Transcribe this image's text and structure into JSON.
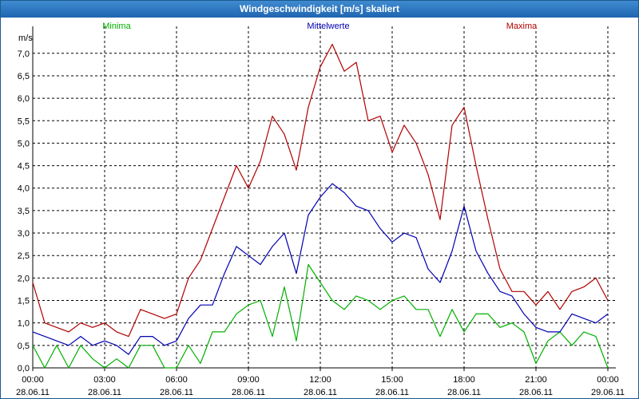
{
  "window": {
    "title": "Windgeschwindigkeit [m/s] skaliert"
  },
  "chart_data": {
    "type": "line",
    "title": "Windgeschwindigkeit [m/s] skaliert",
    "ylabel": "m/s",
    "ylim": [
      0,
      7.6
    ],
    "yticks": [
      "0,0",
      "0,5",
      "1,0",
      "1,5",
      "2,0",
      "2,5",
      "3,0",
      "3,5",
      "4,0",
      "4,5",
      "5,0",
      "5,5",
      "6,0",
      "6,5",
      "7,0"
    ],
    "xlim": [
      0,
      24
    ],
    "xticks": [
      {
        "time": "00:00",
        "date": "28.06.11"
      },
      {
        "time": "03:00",
        "date": "28.06.11"
      },
      {
        "time": "06:00",
        "date": "28.06.11"
      },
      {
        "time": "09:00",
        "date": "28.06.11"
      },
      {
        "time": "12:00",
        "date": "28.06.11"
      },
      {
        "time": "15:00",
        "date": "28.06.11"
      },
      {
        "time": "18:00",
        "date": "28.06.11"
      },
      {
        "time": "21:00",
        "date": "28.06.11"
      },
      {
        "time": "00:00",
        "date": "29.06.11"
      }
    ],
    "grid": true,
    "legend_position": "top",
    "series": [
      {
        "name": "Minima",
        "color": "#00b000",
        "x": [
          0,
          0.5,
          1,
          1.5,
          2,
          2.5,
          3,
          3.5,
          4,
          4.5,
          5,
          5.5,
          6,
          6.5,
          7,
          7.5,
          8,
          8.5,
          9,
          9.5,
          10,
          10.5,
          11,
          11.5,
          12,
          12.5,
          13,
          13.5,
          14,
          14.5,
          15,
          15.5,
          16,
          16.5,
          17,
          17.5,
          18,
          18.5,
          19,
          19.5,
          20,
          20.5,
          21,
          21.5,
          22,
          22.5,
          23,
          23.5,
          24
        ],
        "y": [
          0.5,
          0,
          0.5,
          0,
          0.5,
          0.2,
          0,
          0.2,
          0,
          0.5,
          0.5,
          0,
          0,
          0.5,
          0.1,
          0.8,
          0.8,
          1.2,
          1.4,
          1.5,
          0.7,
          1.8,
          0.6,
          2.3,
          1.9,
          1.5,
          1.3,
          1.6,
          1.5,
          1.3,
          1.5,
          1.6,
          1.3,
          1.3,
          0.7,
          1.3,
          0.8,
          1.2,
          1.2,
          0.9,
          1.0,
          0.8,
          0.1,
          0.6,
          0.8,
          0.5,
          0.8,
          0.7,
          0
        ]
      },
      {
        "name": "Mittelwerte",
        "color": "#0000b0",
        "x": [
          0,
          0.5,
          1,
          1.5,
          2,
          2.5,
          3,
          3.5,
          4,
          4.5,
          5,
          5.5,
          6,
          6.5,
          7,
          7.5,
          8,
          8.5,
          9,
          9.5,
          10,
          10.5,
          11,
          11.5,
          12,
          12.5,
          13,
          13.5,
          14,
          14.5,
          15,
          15.5,
          16,
          16.5,
          17,
          17.5,
          18,
          18.5,
          19,
          19.5,
          20,
          20.5,
          21,
          21.5,
          22,
          22.5,
          23,
          23.5,
          24
        ],
        "y": [
          0.8,
          0.7,
          0.6,
          0.5,
          0.7,
          0.5,
          0.6,
          0.5,
          0.3,
          0.7,
          0.7,
          0.5,
          0.6,
          1.1,
          1.4,
          1.4,
          2.1,
          2.7,
          2.5,
          2.3,
          2.7,
          3.0,
          2.1,
          3.4,
          3.8,
          4.1,
          3.9,
          3.6,
          3.5,
          3.1,
          2.8,
          3.0,
          2.9,
          2.2,
          1.9,
          2.6,
          3.6,
          2.6,
          2.1,
          1.7,
          1.6,
          1.2,
          0.9,
          0.8,
          0.8,
          1.2,
          1.1,
          1.0,
          1.2
        ]
      },
      {
        "name": "Maxima",
        "color": "#b00000",
        "x": [
          0,
          0.5,
          1,
          1.5,
          2,
          2.5,
          3,
          3.5,
          4,
          4.5,
          5,
          5.5,
          6,
          6.5,
          7,
          7.5,
          8,
          8.5,
          9,
          9.5,
          10,
          10.5,
          11,
          11.5,
          12,
          12.5,
          13,
          13.5,
          14,
          14.5,
          15,
          15.5,
          16,
          16.5,
          17,
          17.5,
          18,
          18.5,
          19,
          19.5,
          20,
          20.5,
          21,
          21.5,
          22,
          22.5,
          23,
          23.5,
          24
        ],
        "y": [
          1.9,
          1.0,
          0.9,
          0.8,
          1.0,
          0.9,
          1.0,
          0.8,
          0.7,
          1.3,
          1.2,
          1.1,
          1.2,
          2.0,
          2.4,
          3.1,
          3.8,
          4.5,
          4.0,
          4.6,
          5.6,
          5.2,
          4.4,
          5.8,
          6.7,
          7.2,
          6.6,
          6.8,
          5.5,
          5.6,
          4.8,
          5.4,
          5.0,
          4.3,
          3.3,
          5.4,
          5.8,
          4.5,
          3.3,
          2.2,
          1.7,
          1.7,
          1.4,
          1.7,
          1.3,
          1.7,
          1.8,
          2.0,
          1.5
        ]
      }
    ]
  }
}
